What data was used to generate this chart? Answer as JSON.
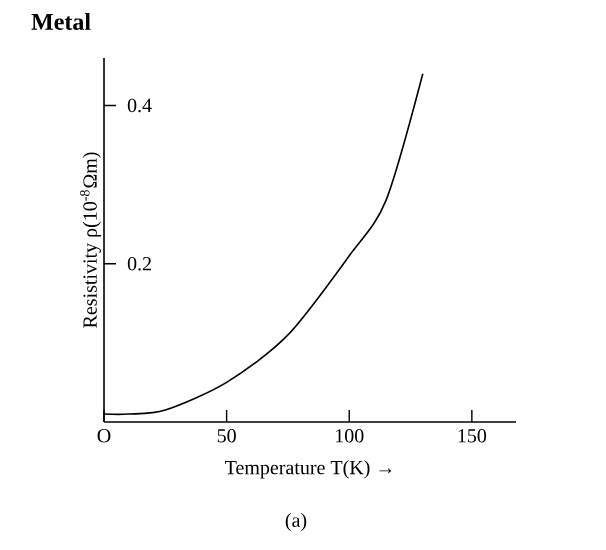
{
  "chart_data": {
    "type": "line",
    "title": "Metal",
    "xlabel": "Temperature T(K) →",
    "ylabel": "Resistivity ρ(10$^{-8}$Ωm)",
    "annotations": [
      "(a)"
    ],
    "x": [
      0,
      10,
      25,
      50,
      75,
      100,
      115,
      130
    ],
    "values": [
      0.01,
      0.01,
      0.015,
      0.05,
      0.11,
      0.21,
      0.28,
      0.44
    ],
    "color": "#000000",
    "xlim": [
      0,
      168
    ],
    "ylim": [
      0,
      0.46
    ],
    "xticks": [
      {
        "value": 0,
        "label": "O"
      },
      50,
      100,
      150
    ],
    "yticks": [
      0.2,
      0.4
    ],
    "line_style": "solid"
  }
}
